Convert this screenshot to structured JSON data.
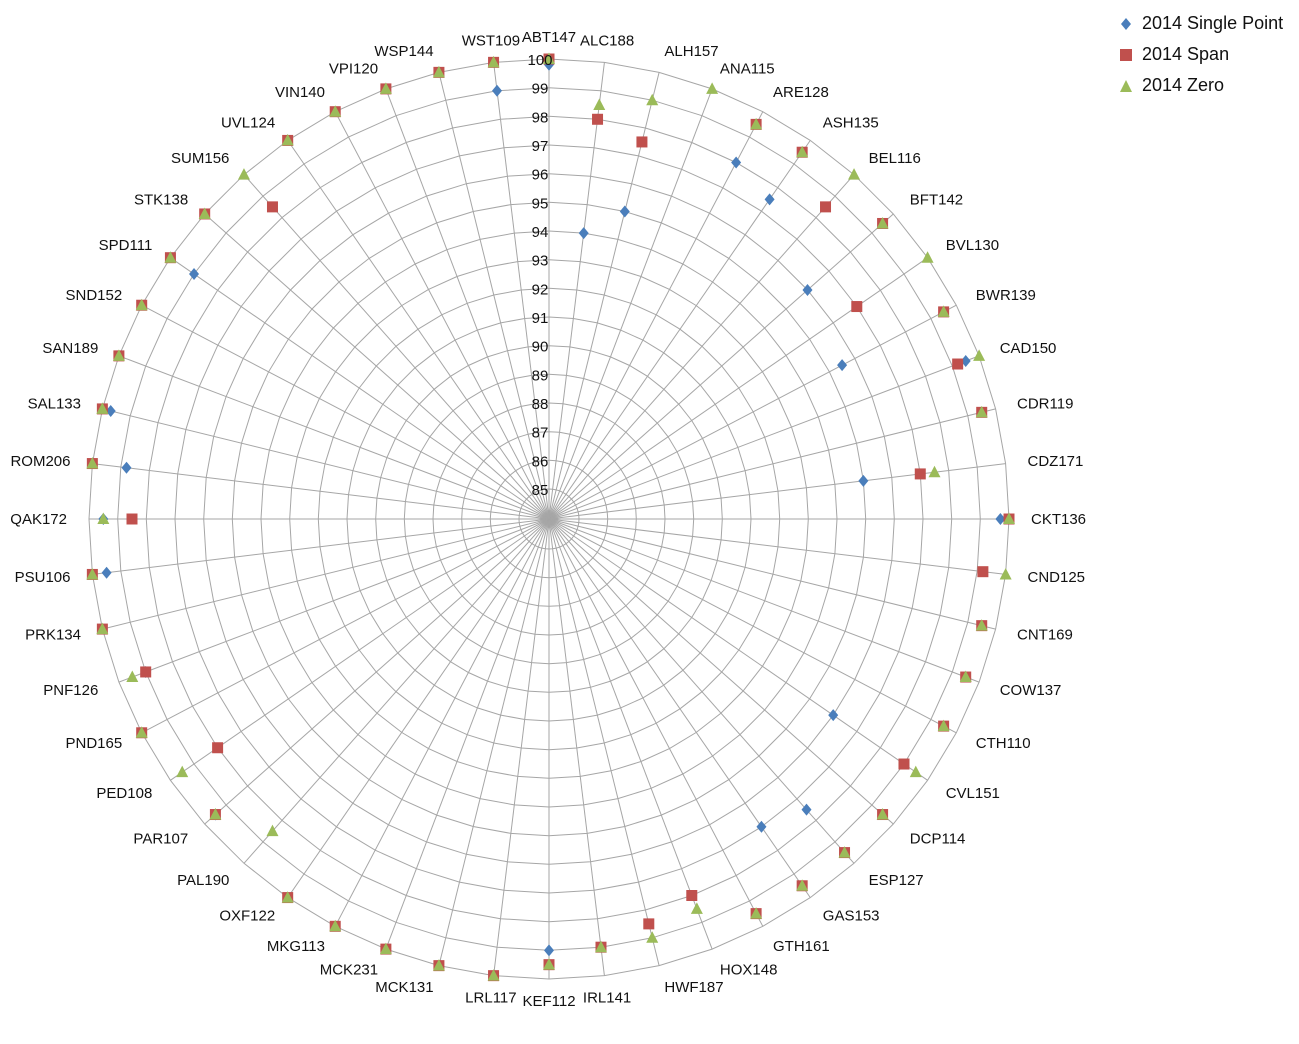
{
  "chart_data": {
    "type": "radar",
    "title": "",
    "scale": {
      "min": 85,
      "max": 100,
      "step": 1,
      "tick_labels": [
        "85",
        "86",
        "87",
        "88",
        "89",
        "90",
        "91",
        "92",
        "93",
        "94",
        "95",
        "96",
        "97",
        "98",
        "99",
        "100"
      ]
    },
    "categories": [
      "ABT147",
      "ALC188",
      "ALH157",
      "ANA115",
      "ARE128",
      "ASH135",
      "BEL116",
      "BFT142",
      "BVL130",
      "BWR139",
      "CAD150",
      "CDR119",
      "CDZ171",
      "CKT136",
      "CND125",
      "CNT169",
      "COW137",
      "CTH110",
      "CVL151",
      "DCP114",
      "ESP127",
      "GAS153",
      "GTH161",
      "HOX148",
      "HWF187",
      "IRL141",
      "KEF112",
      "LRL117",
      "MCK131",
      "MCK231",
      "MKG113",
      "OXF122",
      "PAL190",
      "PAR107",
      "PED108",
      "PND165",
      "PNF126",
      "PRK134",
      "PSU106",
      "QAK172",
      "ROM206",
      "SAL133",
      "SAN189",
      "SND152",
      "SPD111",
      "STK138",
      "SUM156",
      "UVL124",
      "VIN140",
      "VPI120",
      "WSP144",
      "WST109"
    ],
    "series": [
      {
        "name": "2014 Single Point",
        "color": "#4a7ebb",
        "marker": "diamond",
        "values": [
          99.8,
          94.0,
          95.0,
          null,
          98.0,
          97.5,
          null,
          96.0,
          null,
          95.5,
          99.5,
          null,
          95.0,
          99.7,
          null,
          null,
          null,
          null,
          96.0,
          null,
          97.5,
          97.0,
          null,
          null,
          null,
          null,
          99.0,
          null,
          null,
          null,
          null,
          null,
          null,
          99.5,
          null,
          null,
          99.0,
          null,
          99.5,
          99.5,
          98.8,
          99.7,
          null,
          null,
          99.0,
          null,
          null,
          null,
          null,
          null,
          null,
          99.0
        ]
      },
      {
        "name": "2014 Span",
        "color": "#c0504d",
        "marker": "square",
        "values": [
          100,
          98.0,
          97.5,
          null,
          99.5,
          99.5,
          98.5,
          99.5,
          97.0,
          99.5,
          99.2,
          99.5,
          97.0,
          100,
          99.2,
          99.5,
          99.5,
          99.5,
          99.0,
          99.5,
          99.5,
          99.5,
          99.5,
          98.0,
          98.5,
          99.0,
          99.5,
          100,
          100,
          100,
          100,
          100,
          null,
          99.5,
          98.0,
          100,
          99.0,
          100,
          100,
          98.5,
          100,
          100,
          100,
          100,
          100,
          100,
          98.5,
          100,
          100,
          100,
          100,
          100
        ]
      },
      {
        "name": "2014 Zero",
        "color": "#9bbb59",
        "marker": "triangle",
        "values": [
          100,
          98.5,
          99.0,
          100,
          99.5,
          99.5,
          100,
          99.5,
          100,
          99.5,
          100,
          99.5,
          97.5,
          100,
          100,
          99.5,
          99.5,
          99.5,
          99.5,
          99.5,
          99.5,
          99.5,
          99.5,
          98.5,
          99.0,
          99.0,
          99.5,
          100,
          100,
          100,
          100,
          100,
          98.5,
          99.5,
          99.5,
          100,
          99.5,
          100,
          100,
          99.5,
          100,
          100,
          100,
          100,
          100,
          100,
          100,
          100,
          100,
          100,
          100,
          100
        ]
      }
    ],
    "legend_position": "top-right",
    "grid": true
  }
}
